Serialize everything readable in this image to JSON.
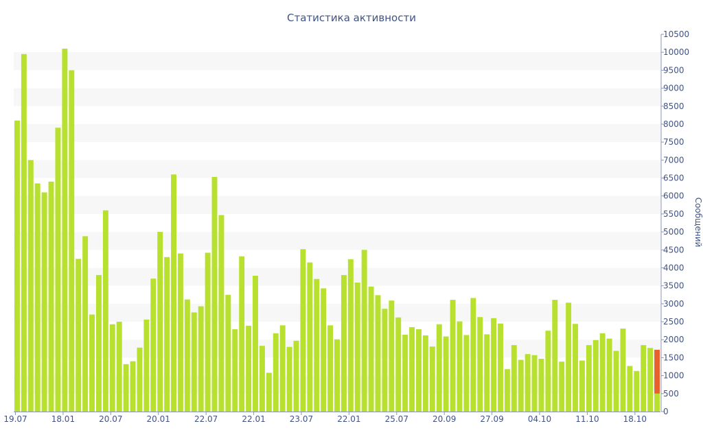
{
  "chart_data": {
    "type": "bar",
    "title": "Статистика активности",
    "ylabel": "Сообщений",
    "ylim": [
      0,
      10500
    ],
    "y_ticks": [
      0,
      500,
      1000,
      1500,
      2000,
      2500,
      3000,
      3500,
      4000,
      4500,
      5000,
      5500,
      6000,
      6500,
      7000,
      7500,
      8000,
      8500,
      9000,
      9500,
      10000,
      10500
    ],
    "y_axis_side": "right",
    "grid": "alternating horizontal bands",
    "x_tick_labels": [
      {
        "index": 0,
        "label": "19.07"
      },
      {
        "index": 7,
        "label": "18.01"
      },
      {
        "index": 14,
        "label": "20.07"
      },
      {
        "index": 21,
        "label": "20.01"
      },
      {
        "index": 28,
        "label": "22.07"
      },
      {
        "index": 35,
        "label": "22.01"
      },
      {
        "index": 42,
        "label": "23.07"
      },
      {
        "index": 49,
        "label": "22.01"
      },
      {
        "index": 56,
        "label": "25.07"
      },
      {
        "index": 63,
        "label": "20.09"
      },
      {
        "index": 70,
        "label": "27.09"
      },
      {
        "index": 77,
        "label": "04.10"
      },
      {
        "index": 84,
        "label": "11.10"
      },
      {
        "index": 91,
        "label": "18.10"
      }
    ],
    "bar_color": "#b8e02e",
    "highlight_color": "#e8612c",
    "values": [
      8100,
      9950,
      7000,
      6350,
      6100,
      6400,
      7900,
      10100,
      9500,
      4250,
      4880,
      2700,
      3800,
      5600,
      2430,
      2500,
      1320,
      1400,
      1780,
      2560,
      3700,
      5000,
      4300,
      6600,
      4400,
      3120,
      2760,
      2930,
      4420,
      6530,
      5470,
      3250,
      2290,
      4320,
      2390,
      3780,
      1830,
      1080,
      2180,
      2400,
      1800,
      1970,
      4520,
      4150,
      3690,
      3430,
      2400,
      2010,
      3800,
      4240,
      3590,
      4500,
      3480,
      3240,
      2860,
      3090,
      2620,
      2140,
      2350,
      2290,
      2120,
      1810,
      2430,
      2090,
      3110,
      2510,
      2130,
      3160,
      2630,
      2150,
      2600,
      2450,
      1180,
      1850,
      1440,
      1600,
      1570,
      1470,
      2250,
      3110,
      1390,
      3030,
      2440,
      1420,
      1850,
      1990,
      2180,
      2030,
      1690,
      2310,
      1270,
      1130,
      1850,
      1770,
      1720
    ],
    "last_bar_split": {
      "base": 500,
      "highlight": 1220
    }
  }
}
